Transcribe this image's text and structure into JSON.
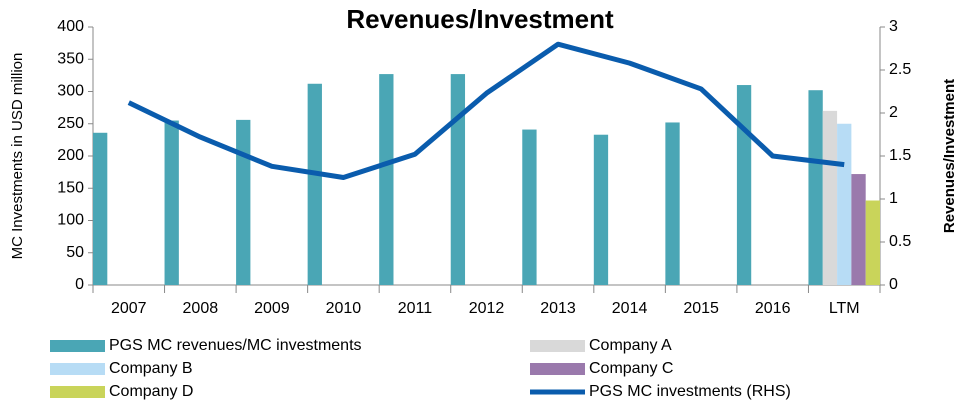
{
  "chart_data": {
    "type": "bar",
    "title": "Revenues/Investment",
    "y_label": "MC Investments in USD million",
    "y2_label": "Revenues/Investment",
    "categories": [
      "2007",
      "2008",
      "2009",
      "2010",
      "2011",
      "2012",
      "2013",
      "2014",
      "2015",
      "2016",
      "LTM"
    ],
    "series": [
      {
        "name": "PGS MC revenues/MC investments",
        "color": "#4aa6b5",
        "type": "bar",
        "values": [
          236,
          255,
          256,
          312,
          327,
          327,
          241,
          233,
          252,
          310,
          302
        ]
      },
      {
        "name": "Company A",
        "color": "#d9d9d9",
        "type": "bar",
        "values": [
          null,
          null,
          null,
          null,
          null,
          null,
          null,
          null,
          null,
          null,
          270
        ]
      },
      {
        "name": "Company B",
        "color": "#b7dcf5",
        "type": "bar",
        "values": [
          null,
          null,
          null,
          null,
          null,
          null,
          null,
          null,
          null,
          null,
          250
        ]
      },
      {
        "name": "Company C",
        "color": "#9a79ac",
        "type": "bar",
        "values": [
          null,
          null,
          null,
          null,
          null,
          null,
          null,
          null,
          null,
          null,
          172
        ]
      },
      {
        "name": "Company D",
        "color": "#c9d45a",
        "type": "bar",
        "values": [
          null,
          null,
          null,
          null,
          null,
          null,
          null,
          null,
          null,
          null,
          131
        ]
      },
      {
        "name": "PGS MC investments (RHS)",
        "color": "#0a5cad",
        "type": "line",
        "axis": "y2",
        "values": [
          2.12,
          1.72,
          1.38,
          1.25,
          1.52,
          2.23,
          2.8,
          2.58,
          2.28,
          1.5,
          1.4
        ]
      }
    ],
    "ylim": [
      0,
      400
    ],
    "yticks": [
      0,
      50,
      100,
      150,
      200,
      250,
      300,
      350,
      400
    ],
    "y2lim": [
      0,
      3
    ],
    "y2ticks": [
      0,
      0.5,
      1,
      1.5,
      2,
      2.5,
      3
    ]
  }
}
